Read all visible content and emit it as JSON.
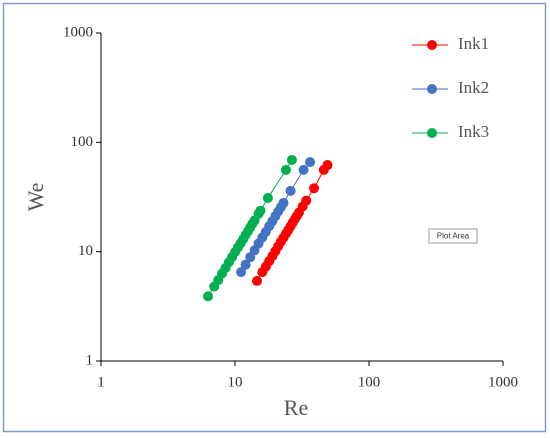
{
  "chart_data": {
    "type": "scatter",
    "connect_points": true,
    "xlabel": "Re",
    "ylabel": "We",
    "tooltip": "Plot Area",
    "xscale": "log",
    "yscale": "log",
    "xlim": [
      1,
      1000
    ],
    "ylim": [
      1,
      1000
    ],
    "xticks": [
      1,
      10,
      100,
      1000
    ],
    "yticks": [
      1,
      10,
      100,
      1000
    ],
    "grid": false,
    "legend": "top-right",
    "series": [
      {
        "name": "Ink1",
        "color": "#ff0000",
        "x": [
          14.6,
          16,
          17,
          18,
          19,
          20,
          21,
          22,
          23,
          24,
          25,
          26,
          27,
          28,
          29,
          30,
          32,
          34,
          38.9,
          46,
          49
        ],
        "values": [
          5.4,
          6.5,
          7.3,
          8.2,
          9.1,
          10.1,
          11.2,
          12.3,
          13.4,
          14.6,
          15.8,
          17.1,
          18.5,
          19.9,
          21.3,
          22.8,
          25.9,
          29.3,
          38,
          56,
          62
        ]
      },
      {
        "name": "Ink2",
        "color": "#4472c4",
        "x": [
          11.1,
          12,
          13,
          14,
          15,
          16,
          17,
          18,
          19,
          20,
          21,
          22,
          23,
          26,
          32.5,
          36.3
        ],
        "values": [
          6.5,
          7.6,
          8.9,
          10.3,
          11.9,
          13.5,
          15.2,
          17.1,
          19,
          21.1,
          23.3,
          25.5,
          27.9,
          36,
          56,
          66
        ]
      },
      {
        "name": "Ink3",
        "color": "#00b050",
        "x": [
          6.29,
          7,
          7.5,
          8,
          8.5,
          9,
          9.5,
          10,
          10.5,
          11,
          11.5,
          12,
          12.5,
          13,
          13.5,
          14,
          15,
          15.5,
          17.6,
          24,
          26.6
        ],
        "values": [
          3.9,
          4.8,
          5.5,
          6.3,
          7.1,
          8,
          8.9,
          9.9,
          10.9,
          11.9,
          13,
          14.2,
          15.4,
          16.7,
          18,
          19.3,
          22.2,
          23.7,
          31,
          56,
          69
        ]
      }
    ]
  }
}
